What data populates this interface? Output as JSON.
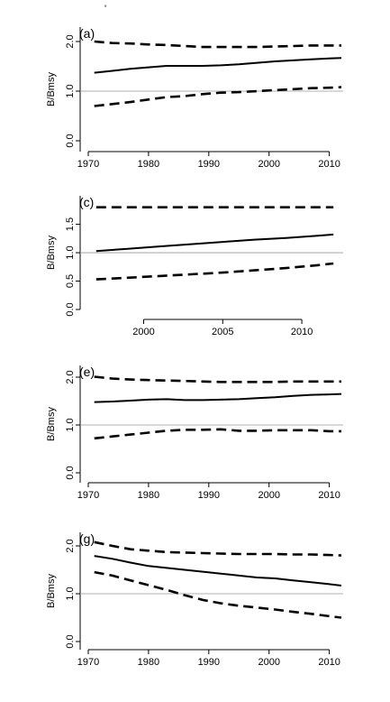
{
  "stray_mark": "'",
  "chart_data": [
    {
      "type": "line",
      "panel_label": "(a)",
      "title": "",
      "xlabel": "",
      "ylabel": "B/Bmsy",
      "xlim": [
        1970,
        2012
      ],
      "ylim": [
        0,
        2
      ],
      "x_ticks": [
        1970,
        1980,
        1990,
        2000,
        2010
      ],
      "y_ticks": [
        "0.0",
        "1.0",
        "2.0"
      ],
      "reference_line": 1.0,
      "grid": false,
      "legend": "none",
      "series": [
        {
          "style": "dashed",
          "x": [
            1971,
            1974,
            1977,
            1980,
            1983,
            1986,
            1989,
            1992,
            1995,
            1998,
            2001,
            2004,
            2007,
            2010,
            2012
          ],
          "values": [
            2.0,
            1.97,
            1.96,
            1.94,
            1.93,
            1.91,
            1.89,
            1.89,
            1.89,
            1.89,
            1.9,
            1.91,
            1.92,
            1.92,
            1.92
          ]
        },
        {
          "style": "solid",
          "x": [
            1971,
            1974,
            1977,
            1980,
            1983,
            1986,
            1989,
            1992,
            1995,
            1998,
            2001,
            2004,
            2007,
            2010,
            2012
          ],
          "values": [
            1.37,
            1.41,
            1.45,
            1.48,
            1.51,
            1.51,
            1.51,
            1.52,
            1.54,
            1.57,
            1.6,
            1.62,
            1.64,
            1.66,
            1.67
          ]
        },
        {
          "style": "dashed",
          "x": [
            1971,
            1974,
            1977,
            1980,
            1983,
            1986,
            1989,
            1992,
            1995,
            1998,
            2001,
            2004,
            2007,
            2010,
            2012
          ],
          "values": [
            0.7,
            0.74,
            0.78,
            0.83,
            0.88,
            0.9,
            0.94,
            0.97,
            0.98,
            1.0,
            1.02,
            1.04,
            1.06,
            1.07,
            1.08
          ]
        }
      ]
    },
    {
      "type": "line",
      "panel_label": "(c)",
      "title": "",
      "xlabel": "",
      "ylabel": "B/Bmsy",
      "xlim": [
        1996.5,
        2012.5
      ],
      "ylim": [
        0,
        1.7
      ],
      "x_ticks": [
        2000,
        2005,
        2010
      ],
      "y_ticks": [
        "0.0",
        "0.5",
        "1.0",
        "1.5"
      ],
      "reference_line": 1.0,
      "grid": false,
      "legend": "none",
      "series": [
        {
          "style": "dashed",
          "x": [
            1997,
            2000,
            2003,
            2006,
            2009,
            2012
          ],
          "values": [
            1.8,
            1.8,
            1.8,
            1.8,
            1.8,
            1.8
          ]
        },
        {
          "style": "solid",
          "x": [
            1997,
            1999,
            2001,
            2003,
            2005,
            2007,
            2009,
            2011,
            2012
          ],
          "values": [
            1.03,
            1.07,
            1.11,
            1.15,
            1.19,
            1.23,
            1.26,
            1.3,
            1.32
          ]
        },
        {
          "style": "dashed",
          "x": [
            1997,
            1999,
            2001,
            2003,
            2005,
            2007,
            2009,
            2011,
            2012
          ],
          "values": [
            0.53,
            0.56,
            0.59,
            0.62,
            0.65,
            0.69,
            0.73,
            0.78,
            0.81
          ]
        }
      ]
    },
    {
      "type": "line",
      "panel_label": "(e)",
      "title": "",
      "xlabel": "",
      "ylabel": "B/Bmsy",
      "xlim": [
        1970,
        2012
      ],
      "ylim": [
        0,
        2
      ],
      "x_ticks": [
        1970,
        1980,
        1990,
        2000,
        2010
      ],
      "y_ticks": [
        "0.0",
        "1.0",
        "2.0"
      ],
      "reference_line": 1.0,
      "grid": false,
      "legend": "none",
      "series": [
        {
          "style": "dashed",
          "x": [
            1971,
            1974,
            1977,
            1980,
            1983,
            1986,
            1989,
            1992,
            1995,
            1998,
            2001,
            2004,
            2007,
            2010,
            2012
          ],
          "values": [
            2.01,
            1.97,
            1.95,
            1.94,
            1.93,
            1.92,
            1.91,
            1.9,
            1.9,
            1.9,
            1.9,
            1.91,
            1.91,
            1.91,
            1.91
          ]
        },
        {
          "style": "solid",
          "x": [
            1971,
            1974,
            1977,
            1980,
            1983,
            1986,
            1989,
            1992,
            1995,
            1998,
            2001,
            2004,
            2007,
            2010,
            2012
          ],
          "values": [
            1.48,
            1.49,
            1.51,
            1.53,
            1.54,
            1.52,
            1.52,
            1.53,
            1.54,
            1.56,
            1.58,
            1.61,
            1.63,
            1.64,
            1.65
          ]
        },
        {
          "style": "dashed",
          "x": [
            1971,
            1974,
            1977,
            1980,
            1983,
            1986,
            1989,
            1992,
            1995,
            1998,
            2001,
            2004,
            2007,
            2010,
            2012
          ],
          "values": [
            0.72,
            0.76,
            0.8,
            0.84,
            0.88,
            0.9,
            0.9,
            0.91,
            0.88,
            0.88,
            0.89,
            0.89,
            0.89,
            0.87,
            0.87
          ]
        }
      ]
    },
    {
      "type": "line",
      "panel_label": "(g)",
      "title": "",
      "xlabel": "",
      "ylabel": "B/Bmsy",
      "xlim": [
        1970,
        2012
      ],
      "ylim": [
        0,
        2
      ],
      "x_ticks": [
        1970,
        1980,
        1990,
        2000,
        2010
      ],
      "y_ticks": [
        "0.0",
        "1.0",
        "2.0"
      ],
      "reference_line": 1.0,
      "grid": false,
      "legend": "none",
      "series": [
        {
          "style": "dashed",
          "x": [
            1971,
            1974,
            1977,
            1980,
            1983,
            1986,
            1989,
            1992,
            1995,
            1998,
            2001,
            2004,
            2007,
            2010,
            2012
          ],
          "values": [
            2.08,
            2.0,
            1.93,
            1.9,
            1.87,
            1.86,
            1.85,
            1.84,
            1.83,
            1.83,
            1.83,
            1.82,
            1.82,
            1.81,
            1.8
          ]
        },
        {
          "style": "solid",
          "x": [
            1971,
            1974,
            1977,
            1980,
            1983,
            1986,
            1989,
            1992,
            1995,
            1998,
            2001,
            2004,
            2007,
            2010,
            2012
          ],
          "values": [
            1.79,
            1.73,
            1.65,
            1.58,
            1.54,
            1.5,
            1.46,
            1.42,
            1.38,
            1.34,
            1.32,
            1.28,
            1.24,
            1.2,
            1.17
          ]
        },
        {
          "style": "dashed",
          "x": [
            1971,
            1974,
            1977,
            1980,
            1983,
            1986,
            1989,
            1992,
            1995,
            1998,
            2001,
            2004,
            2007,
            2010,
            2012
          ],
          "values": [
            1.45,
            1.38,
            1.28,
            1.18,
            1.08,
            0.97,
            0.87,
            0.8,
            0.75,
            0.71,
            0.67,
            0.62,
            0.58,
            0.53,
            0.5
          ]
        }
      ]
    }
  ]
}
